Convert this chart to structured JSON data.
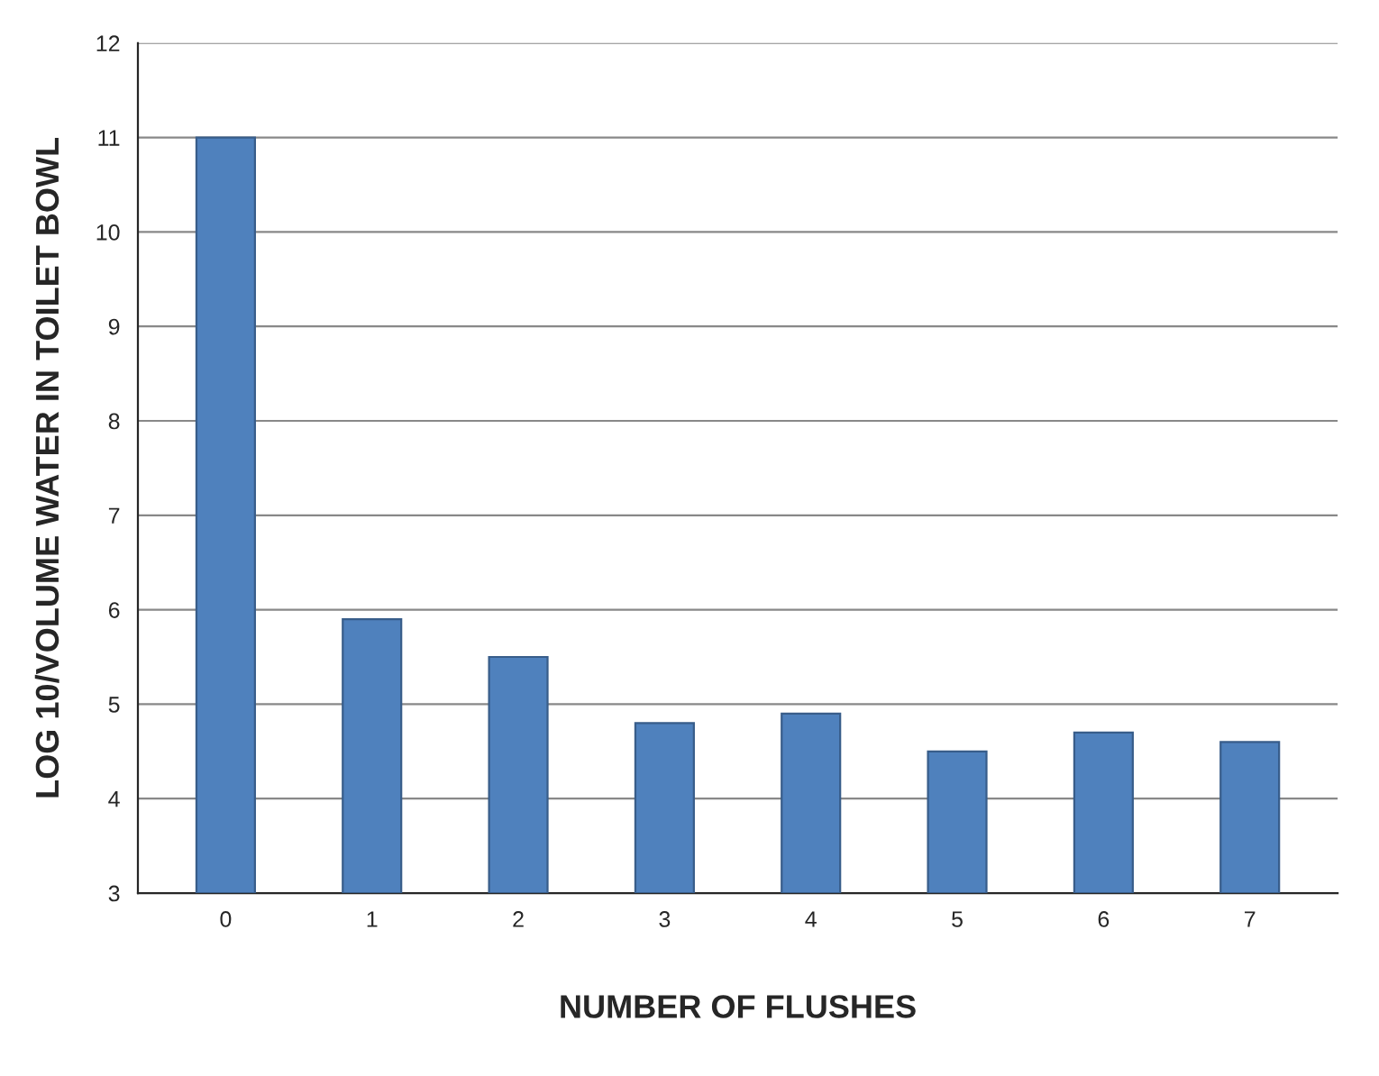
{
  "chart_data": {
    "type": "bar",
    "xlabel": "NUMBER OF FLUSHES",
    "ylabel": "LOG 10/VOLUME WATER IN TOILET BOWL",
    "categories": [
      "0",
      "1",
      "2",
      "3",
      "4",
      "5",
      "6",
      "7"
    ],
    "values": [
      11.0,
      5.9,
      5.5,
      4.8,
      4.9,
      4.5,
      4.7,
      4.6
    ],
    "color": "#4f81bd",
    "ylim": [
      3,
      12
    ],
    "yticks": [
      3,
      4,
      5,
      6,
      7,
      8,
      9,
      10,
      11,
      12
    ],
    "grid": "y"
  }
}
